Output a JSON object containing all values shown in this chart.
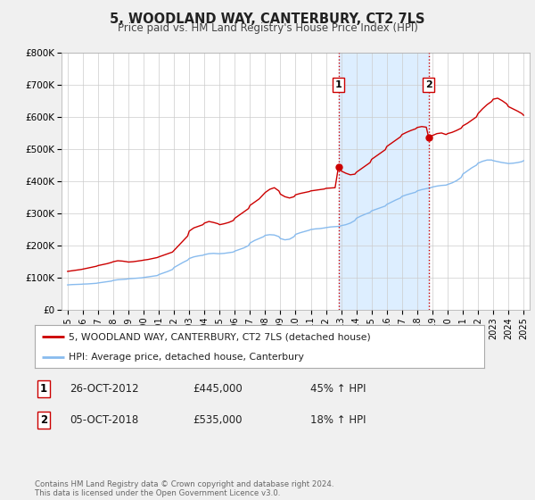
{
  "title": "5, WOODLAND WAY, CANTERBURY, CT2 7LS",
  "subtitle": "Price paid vs. HM Land Registry's House Price Index (HPI)",
  "bg_color": "#f0f0f0",
  "plot_bg_color": "#ffffff",
  "grid_color": "#cccccc",
  "ylim": [
    0,
    800000
  ],
  "yticks": [
    0,
    100000,
    200000,
    300000,
    400000,
    500000,
    600000,
    700000,
    800000
  ],
  "ytick_labels": [
    "£0",
    "£100K",
    "£200K",
    "£300K",
    "£400K",
    "£500K",
    "£600K",
    "£700K",
    "£800K"
  ],
  "xlim_start": 1994.6,
  "xlim_end": 2025.4,
  "xticks": [
    1995,
    1996,
    1997,
    1998,
    1999,
    2000,
    2001,
    2002,
    2003,
    2004,
    2005,
    2006,
    2007,
    2008,
    2009,
    2010,
    2011,
    2012,
    2013,
    2014,
    2015,
    2016,
    2017,
    2018,
    2019,
    2020,
    2021,
    2022,
    2023,
    2024,
    2025
  ],
  "property_line_color": "#cc0000",
  "hpi_line_color": "#88bbee",
  "marker_color": "#cc0000",
  "vline_color": "#cc0000",
  "shade_color": "#ddeeff",
  "legend_label_property": "5, WOODLAND WAY, CANTERBURY, CT2 7LS (detached house)",
  "legend_label_hpi": "HPI: Average price, detached house, Canterbury",
  "sale1_x": 2012.82,
  "sale1_y": 445000,
  "sale2_x": 2018.76,
  "sale2_y": 535000,
  "footnote": "Contains HM Land Registry data © Crown copyright and database right 2024.\nThis data is licensed under the Open Government Licence v3.0.",
  "table_rows": [
    {
      "num": "1",
      "date": "26-OCT-2012",
      "price": "£445,000",
      "hpi": "45% ↑ HPI"
    },
    {
      "num": "2",
      "date": "05-OCT-2018",
      "price": "£535,000",
      "hpi": "18% ↑ HPI"
    }
  ],
  "property_data": [
    [
      1995.0,
      120000
    ],
    [
      1995.3,
      122000
    ],
    [
      1995.6,
      124000
    ],
    [
      1995.9,
      126000
    ],
    [
      1996.0,
      127000
    ],
    [
      1996.3,
      130000
    ],
    [
      1996.6,
      133000
    ],
    [
      1996.9,
      136000
    ],
    [
      1997.0,
      138000
    ],
    [
      1997.3,
      141000
    ],
    [
      1997.6,
      144000
    ],
    [
      1997.9,
      148000
    ],
    [
      1998.0,
      150000
    ],
    [
      1998.3,
      153000
    ],
    [
      1998.6,
      152000
    ],
    [
      1998.9,
      150000
    ],
    [
      1999.0,
      149000
    ],
    [
      1999.3,
      150000
    ],
    [
      1999.6,
      152000
    ],
    [
      1999.9,
      154000
    ],
    [
      2000.0,
      155000
    ],
    [
      2000.3,
      157000
    ],
    [
      2000.6,
      160000
    ],
    [
      2000.9,
      163000
    ],
    [
      2001.0,
      165000
    ],
    [
      2001.3,
      170000
    ],
    [
      2001.6,
      175000
    ],
    [
      2001.9,
      180000
    ],
    [
      2002.0,
      185000
    ],
    [
      2002.3,
      200000
    ],
    [
      2002.6,
      215000
    ],
    [
      2002.9,
      230000
    ],
    [
      2003.0,
      245000
    ],
    [
      2003.3,
      255000
    ],
    [
      2003.6,
      260000
    ],
    [
      2003.9,
      265000
    ],
    [
      2004.0,
      270000
    ],
    [
      2004.3,
      275000
    ],
    [
      2004.6,
      272000
    ],
    [
      2004.9,
      268000
    ],
    [
      2005.0,
      265000
    ],
    [
      2005.3,
      268000
    ],
    [
      2005.6,
      272000
    ],
    [
      2005.9,
      278000
    ],
    [
      2006.0,
      285000
    ],
    [
      2006.3,
      295000
    ],
    [
      2006.6,
      305000
    ],
    [
      2006.9,
      315000
    ],
    [
      2007.0,
      325000
    ],
    [
      2007.3,
      335000
    ],
    [
      2007.6,
      345000
    ],
    [
      2007.9,
      360000
    ],
    [
      2008.0,
      365000
    ],
    [
      2008.3,
      375000
    ],
    [
      2008.6,
      380000
    ],
    [
      2008.9,
      370000
    ],
    [
      2009.0,
      360000
    ],
    [
      2009.3,
      352000
    ],
    [
      2009.6,
      348000
    ],
    [
      2009.9,
      352000
    ],
    [
      2010.0,
      358000
    ],
    [
      2010.3,
      362000
    ],
    [
      2010.6,
      365000
    ],
    [
      2010.9,
      368000
    ],
    [
      2011.0,
      370000
    ],
    [
      2011.3,
      372000
    ],
    [
      2011.6,
      374000
    ],
    [
      2011.9,
      376000
    ],
    [
      2012.0,
      378000
    ],
    [
      2012.3,
      379000
    ],
    [
      2012.6,
      380000
    ],
    [
      2012.82,
      445000
    ],
    [
      2013.0,
      432000
    ],
    [
      2013.3,
      425000
    ],
    [
      2013.6,
      420000
    ],
    [
      2013.9,
      422000
    ],
    [
      2014.0,
      428000
    ],
    [
      2014.3,
      438000
    ],
    [
      2014.6,
      448000
    ],
    [
      2014.9,
      458000
    ],
    [
      2015.0,
      468000
    ],
    [
      2015.3,
      478000
    ],
    [
      2015.6,
      488000
    ],
    [
      2015.9,
      498000
    ],
    [
      2016.0,
      508000
    ],
    [
      2016.3,
      518000
    ],
    [
      2016.6,
      528000
    ],
    [
      2016.9,
      538000
    ],
    [
      2017.0,
      545000
    ],
    [
      2017.3,
      552000
    ],
    [
      2017.6,
      558000
    ],
    [
      2017.9,
      563000
    ],
    [
      2018.0,
      567000
    ],
    [
      2018.3,
      570000
    ],
    [
      2018.6,
      568000
    ],
    [
      2018.76,
      535000
    ],
    [
      2019.0,
      542000
    ],
    [
      2019.3,
      548000
    ],
    [
      2019.6,
      550000
    ],
    [
      2019.9,
      545000
    ],
    [
      2020.0,
      548000
    ],
    [
      2020.3,
      552000
    ],
    [
      2020.6,
      558000
    ],
    [
      2020.9,
      565000
    ],
    [
      2021.0,
      572000
    ],
    [
      2021.3,
      580000
    ],
    [
      2021.6,
      590000
    ],
    [
      2021.9,
      600000
    ],
    [
      2022.0,
      610000
    ],
    [
      2022.3,
      625000
    ],
    [
      2022.6,
      638000
    ],
    [
      2022.9,
      648000
    ],
    [
      2023.0,
      655000
    ],
    [
      2023.3,
      658000
    ],
    [
      2023.6,
      650000
    ],
    [
      2023.9,
      640000
    ],
    [
      2024.0,
      632000
    ],
    [
      2024.3,
      625000
    ],
    [
      2024.6,
      618000
    ],
    [
      2024.9,
      610000
    ],
    [
      2025.0,
      605000
    ]
  ],
  "hpi_data": [
    [
      1995.0,
      78000
    ],
    [
      1995.3,
      79000
    ],
    [
      1995.6,
      79500
    ],
    [
      1995.9,
      80000
    ],
    [
      1996.0,
      80500
    ],
    [
      1996.3,
      81000
    ],
    [
      1996.6,
      82000
    ],
    [
      1996.9,
      83000
    ],
    [
      1997.0,
      84000
    ],
    [
      1997.3,
      86000
    ],
    [
      1997.6,
      88000
    ],
    [
      1997.9,
      90000
    ],
    [
      1998.0,
      92000
    ],
    [
      1998.3,
      94000
    ],
    [
      1998.6,
      95000
    ],
    [
      1998.9,
      96000
    ],
    [
      1999.0,
      97000
    ],
    [
      1999.3,
      98000
    ],
    [
      1999.6,
      99000
    ],
    [
      1999.9,
      100000
    ],
    [
      2000.0,
      101000
    ],
    [
      2000.3,
      103000
    ],
    [
      2000.6,
      105000
    ],
    [
      2000.9,
      107000
    ],
    [
      2001.0,
      110000
    ],
    [
      2001.3,
      115000
    ],
    [
      2001.6,
      120000
    ],
    [
      2001.9,
      126000
    ],
    [
      2002.0,
      132000
    ],
    [
      2002.3,
      140000
    ],
    [
      2002.6,
      148000
    ],
    [
      2002.9,
      155000
    ],
    [
      2003.0,
      160000
    ],
    [
      2003.3,
      165000
    ],
    [
      2003.6,
      168000
    ],
    [
      2003.9,
      170000
    ],
    [
      2004.0,
      172000
    ],
    [
      2004.3,
      175000
    ],
    [
      2004.6,
      176000
    ],
    [
      2004.9,
      175000
    ],
    [
      2005.0,
      175000
    ],
    [
      2005.3,
      176000
    ],
    [
      2005.6,
      178000
    ],
    [
      2005.9,
      180000
    ],
    [
      2006.0,
      183000
    ],
    [
      2006.3,
      188000
    ],
    [
      2006.6,
      193000
    ],
    [
      2006.9,
      200000
    ],
    [
      2007.0,
      208000
    ],
    [
      2007.3,
      216000
    ],
    [
      2007.6,
      222000
    ],
    [
      2007.9,
      228000
    ],
    [
      2008.0,
      232000
    ],
    [
      2008.3,
      234000
    ],
    [
      2008.6,
      233000
    ],
    [
      2008.9,
      228000
    ],
    [
      2009.0,
      222000
    ],
    [
      2009.3,
      218000
    ],
    [
      2009.6,
      220000
    ],
    [
      2009.9,
      228000
    ],
    [
      2010.0,
      235000
    ],
    [
      2010.3,
      240000
    ],
    [
      2010.6,
      244000
    ],
    [
      2010.9,
      248000
    ],
    [
      2011.0,
      250000
    ],
    [
      2011.3,
      252000
    ],
    [
      2011.6,
      253000
    ],
    [
      2011.9,
      255000
    ],
    [
      2012.0,
      256000
    ],
    [
      2012.3,
      258000
    ],
    [
      2012.6,
      259000
    ],
    [
      2012.9,
      260000
    ],
    [
      2013.0,
      262000
    ],
    [
      2013.3,
      265000
    ],
    [
      2013.6,
      270000
    ],
    [
      2013.9,
      278000
    ],
    [
      2014.0,
      285000
    ],
    [
      2014.3,
      292000
    ],
    [
      2014.6,
      298000
    ],
    [
      2014.9,
      303000
    ],
    [
      2015.0,
      308000
    ],
    [
      2015.3,
      313000
    ],
    [
      2015.6,
      318000
    ],
    [
      2015.9,
      323000
    ],
    [
      2016.0,
      328000
    ],
    [
      2016.3,
      335000
    ],
    [
      2016.6,
      342000
    ],
    [
      2016.9,
      348000
    ],
    [
      2017.0,
      353000
    ],
    [
      2017.3,
      358000
    ],
    [
      2017.6,
      362000
    ],
    [
      2017.9,
      366000
    ],
    [
      2018.0,
      370000
    ],
    [
      2018.3,
      374000
    ],
    [
      2018.6,
      377000
    ],
    [
      2018.9,
      380000
    ],
    [
      2019.0,
      382000
    ],
    [
      2019.3,
      385000
    ],
    [
      2019.6,
      387000
    ],
    [
      2019.9,
      388000
    ],
    [
      2020.0,
      390000
    ],
    [
      2020.3,
      395000
    ],
    [
      2020.6,
      402000
    ],
    [
      2020.9,
      412000
    ],
    [
      2021.0,
      422000
    ],
    [
      2021.3,
      432000
    ],
    [
      2021.6,
      442000
    ],
    [
      2021.9,
      450000
    ],
    [
      2022.0,
      456000
    ],
    [
      2022.3,
      462000
    ],
    [
      2022.6,
      466000
    ],
    [
      2022.9,
      466000
    ],
    [
      2023.0,
      464000
    ],
    [
      2023.3,
      461000
    ],
    [
      2023.6,
      458000
    ],
    [
      2023.9,
      456000
    ],
    [
      2024.0,
      455000
    ],
    [
      2024.3,
      456000
    ],
    [
      2024.6,
      458000
    ],
    [
      2024.9,
      461000
    ],
    [
      2025.0,
      464000
    ]
  ]
}
